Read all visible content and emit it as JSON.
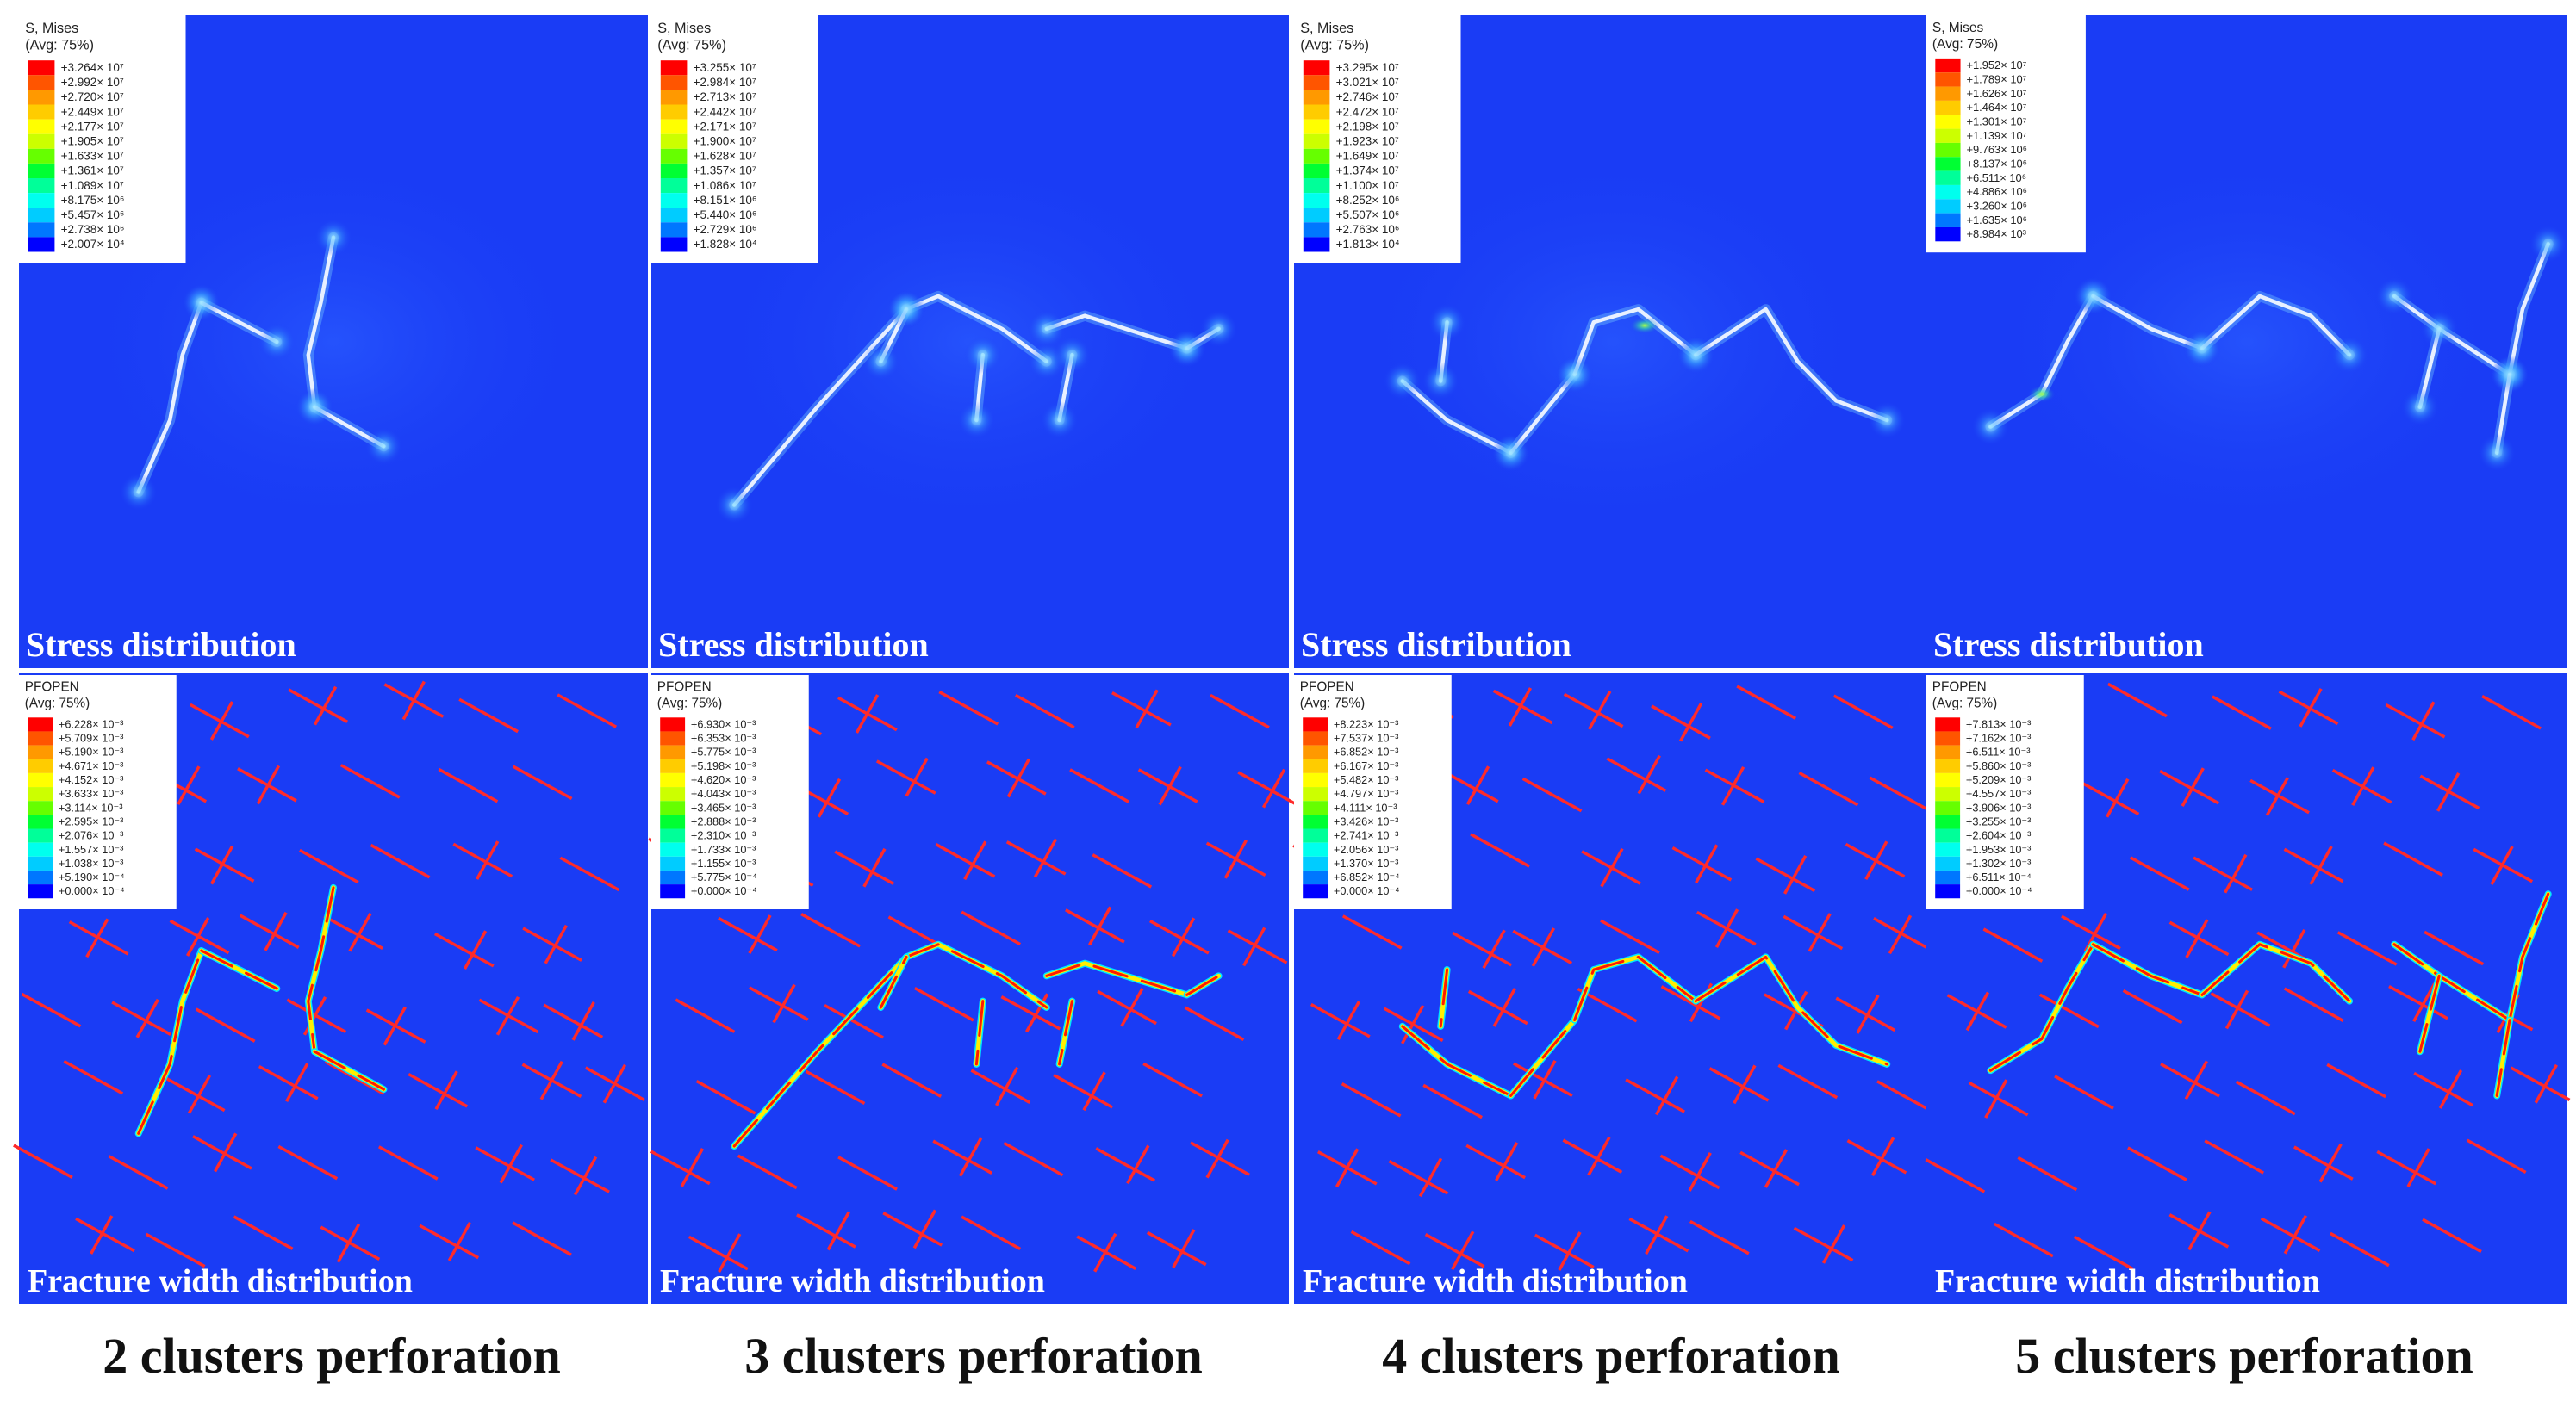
{
  "columns": [
    {
      "caption": "2 clusters perforation",
      "stress": {
        "label": "Stress distribution",
        "legend_title": "S, Mises",
        "legend_avg": "(Avg: 75%)",
        "values": [
          "+3.264× 10⁷",
          "+2.992× 10⁷",
          "+2.720× 10⁷",
          "+2.449× 10⁷",
          "+2.177× 10⁷",
          "+1.905× 10⁷",
          "+1.633× 10⁷",
          "+1.361× 10⁷",
          "+1.089× 10⁷",
          "+8.175× 10⁶",
          "+5.457× 10⁶",
          "+2.738× 10⁶",
          "+2.007× 10⁴"
        ]
      },
      "fracture": {
        "label": "Fracture width distribution",
        "legend_title": "PFOPEN",
        "legend_avg": "(Avg: 75%)",
        "values": [
          "+6.228× 10⁻³",
          "+5.709× 10⁻³",
          "+5.190× 10⁻³",
          "+4.671× 10⁻³",
          "+4.152× 10⁻³",
          "+3.633× 10⁻³",
          "+3.114× 10⁻³",
          "+2.595× 10⁻³",
          "+2.076× 10⁻³",
          "+1.557× 10⁻³",
          "+1.038× 10⁻³",
          "+5.190× 10⁻⁴",
          "+0.000× 10⁻⁴"
        ]
      }
    },
    {
      "caption": "3 clusters perforation",
      "stress": {
        "label": "Stress distribution",
        "legend_title": "S, Mises",
        "legend_avg": "(Avg: 75%)",
        "values": [
          "+3.255× 10⁷",
          "+2.984× 10⁷",
          "+2.713× 10⁷",
          "+2.442× 10⁷",
          "+2.171× 10⁷",
          "+1.900× 10⁷",
          "+1.628× 10⁷",
          "+1.357× 10⁷",
          "+1.086× 10⁷",
          "+8.151× 10⁶",
          "+5.440× 10⁶",
          "+2.729× 10⁶",
          "+1.828× 10⁴"
        ]
      },
      "fracture": {
        "label": "Fracture width distribution",
        "legend_title": "PFOPEN",
        "legend_avg": "(Avg: 75%)",
        "values": [
          "+6.930× 10⁻³",
          "+6.353× 10⁻³",
          "+5.775× 10⁻³",
          "+5.198× 10⁻³",
          "+4.620× 10⁻³",
          "+4.043× 10⁻³",
          "+3.465× 10⁻³",
          "+2.888× 10⁻³",
          "+2.310× 10⁻³",
          "+1.733× 10⁻³",
          "+1.155× 10⁻³",
          "+5.775× 10⁻⁴",
          "+0.000× 10⁻⁴"
        ]
      }
    },
    {
      "caption": "4 clusters perforation",
      "stress": {
        "label": "Stress distribution",
        "legend_title": "S, Mises",
        "legend_avg": "(Avg: 75%)",
        "values": [
          "+3.295× 10⁷",
          "+3.021× 10⁷",
          "+2.746× 10⁷",
          "+2.472× 10⁷",
          "+2.198× 10⁷",
          "+1.923× 10⁷",
          "+1.649× 10⁷",
          "+1.374× 10⁷",
          "+1.100× 10⁷",
          "+8.252× 10⁶",
          "+5.507× 10⁶",
          "+2.763× 10⁶",
          "+1.813× 10⁴"
        ]
      },
      "fracture": {
        "label": "Fracture width distribution",
        "legend_title": "PFOPEN",
        "legend_avg": "(Avg: 75%)",
        "values": [
          "+8.223× 10⁻³",
          "+7.537× 10⁻³",
          "+6.852× 10⁻³",
          "+6.167× 10⁻³",
          "+5.482× 10⁻³",
          "+4.797× 10⁻³",
          "+4.111× 10⁻³",
          "+3.426× 10⁻³",
          "+2.741× 10⁻³",
          "+2.056× 10⁻³",
          "+1.370× 10⁻³",
          "+6.852× 10⁻⁴",
          "+0.000× 10⁻⁴"
        ]
      }
    },
    {
      "caption": "5 clusters perforation",
      "stress": {
        "label": "Stress distribution",
        "legend_title": "S, Mises",
        "legend_avg": "(Avg: 75%)",
        "values": [
          "+1.952× 10⁷",
          "+1.789× 10⁷",
          "+1.626× 10⁷",
          "+1.464× 10⁷",
          "+1.301× 10⁷",
          "+1.139× 10⁷",
          "+9.763× 10⁶",
          "+8.137× 10⁶",
          "+6.511× 10⁶",
          "+4.886× 10⁶",
          "+3.260× 10⁶",
          "+1.635× 10⁶",
          "+8.984× 10³"
        ]
      },
      "fracture": {
        "label": "Fracture width distribution",
        "legend_title": "PFOPEN",
        "legend_avg": "(Avg: 75%)",
        "values": [
          "+7.813× 10⁻³",
          "+7.162× 10⁻³",
          "+6.511× 10⁻³",
          "+5.860× 10⁻³",
          "+5.209× 10⁻³",
          "+4.557× 10⁻³",
          "+3.906× 10⁻³",
          "+3.255× 10⁻³",
          "+2.604× 10⁻³",
          "+1.953× 10⁻³",
          "+1.302× 10⁻³",
          "+6.511× 10⁻⁴",
          "+0.000× 10⁻⁴"
        ]
      }
    }
  ],
  "colors": {
    "background": "#1a3cf5",
    "natural_fracture": "#ff2a2a",
    "stress_fracture": "#e8f0ff",
    "legend_ramp": [
      "#ff0000",
      "#ff5500",
      "#ff9900",
      "#ffcc00",
      "#ffff00",
      "#ccff00",
      "#66ff00",
      "#00ff33",
      "#00ff99",
      "#00ffee",
      "#00ccff",
      "#0077ff",
      "#0000ff"
    ]
  }
}
